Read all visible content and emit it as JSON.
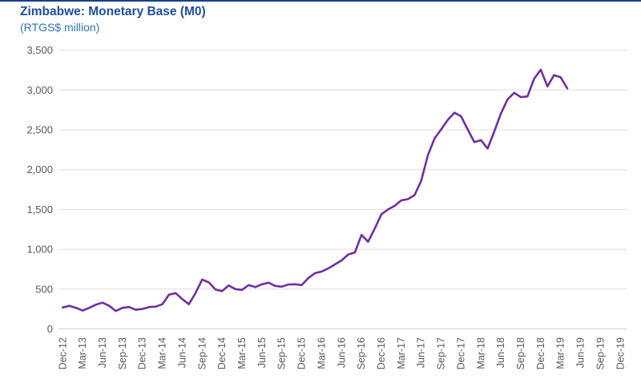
{
  "header": {
    "title": "Zimbabwe: Monetary Base (M0)",
    "subtitle": "(RTGS$ million)"
  },
  "colors": {
    "title": "#1F4E9E",
    "subtitle": "#2E75B6",
    "line": "#7030A0",
    "gridline": "#DCDCDC",
    "zero_line": "#CFCFCF",
    "axis_label": "#595959",
    "top_border": "#17408B"
  },
  "chart_data": {
    "type": "line",
    "title": "Zimbabwe: Monetary Base (M0)",
    "subtitle": "(RTGS$ million)",
    "unit": "RTGS$ million",
    "grid": "horizontal",
    "legend": "none",
    "ylim": [
      0,
      3500
    ],
    "y_ticks": [
      0,
      500,
      1000,
      1500,
      2000,
      2500,
      3000,
      3500
    ],
    "y_tick_labels": [
      "0",
      "500",
      "1,000",
      "1,500",
      "2,000",
      "2,500",
      "3,000",
      "3,500"
    ],
    "x_tick_labels": [
      "Dec-12",
      "Mar-13",
      "Jun-13",
      "Sep-13",
      "Dec-13",
      "Mar-14",
      "Jun-14",
      "Sep-14",
      "Dec-14",
      "Mar-15",
      "Jun-15",
      "Sep-15",
      "Dec-15",
      "Mar-16",
      "Jun-16",
      "Sep-16",
      "Dec-16",
      "Mar-17",
      "Jun-17",
      "Sep-17",
      "Dec-17",
      "Mar-18",
      "Jun-18",
      "Sep-18",
      "Dec-18",
      "Mar-19",
      "Jun-19",
      "Sep-19",
      "Dec-19"
    ],
    "x_label_rotation": -90,
    "series": [
      {
        "name": "Monetary Base (M0)",
        "color": "#7030A0",
        "frequency": "monthly",
        "x": [
          "Dec-12",
          "Jan-13",
          "Feb-13",
          "Mar-13",
          "Apr-13",
          "May-13",
          "Jun-13",
          "Jul-13",
          "Aug-13",
          "Sep-13",
          "Oct-13",
          "Nov-13",
          "Dec-13",
          "Jan-14",
          "Feb-14",
          "Mar-14",
          "Apr-14",
          "May-14",
          "Jun-14",
          "Jul-14",
          "Aug-14",
          "Sep-14",
          "Oct-14",
          "Nov-14",
          "Dec-14",
          "Jan-15",
          "Feb-15",
          "Mar-15",
          "Apr-15",
          "May-15",
          "Jun-15",
          "Jul-15",
          "Aug-15",
          "Sep-15",
          "Oct-15",
          "Nov-15",
          "Dec-15",
          "Jan-16",
          "Feb-16",
          "Mar-16",
          "Apr-16",
          "May-16",
          "Jun-16",
          "Jul-16",
          "Aug-16",
          "Sep-16",
          "Oct-16",
          "Nov-16",
          "Dec-16",
          "Jan-17",
          "Feb-17",
          "Mar-17",
          "Apr-17",
          "May-17",
          "Jun-17",
          "Jul-17",
          "Aug-17",
          "Sep-17",
          "Oct-17",
          "Nov-17",
          "Dec-17",
          "Jan-18",
          "Feb-18",
          "Mar-18",
          "Apr-18",
          "May-18",
          "Jun-18",
          "Jul-18",
          "Aug-18",
          "Sep-18",
          "Oct-18",
          "Nov-18",
          "Dec-18",
          "Jan-19",
          "Feb-19",
          "Mar-19",
          "Apr-19"
        ],
        "values": [
          270,
          290,
          265,
          230,
          265,
          305,
          330,
          290,
          225,
          265,
          275,
          240,
          250,
          275,
          280,
          310,
          430,
          450,
          375,
          310,
          450,
          620,
          585,
          495,
          475,
          545,
          500,
          490,
          550,
          525,
          560,
          580,
          540,
          530,
          558,
          560,
          550,
          640,
          700,
          720,
          760,
          810,
          860,
          935,
          960,
          1180,
          1095,
          1260,
          1440,
          1500,
          1545,
          1615,
          1630,
          1680,
          1860,
          2180,
          2390,
          2505,
          2625,
          2715,
          2670,
          2505,
          2345,
          2370,
          2265,
          2480,
          2705,
          2880,
          2965,
          2910,
          2920,
          3140,
          3255,
          3045,
          3185,
          3160,
          3020
        ]
      }
    ]
  }
}
